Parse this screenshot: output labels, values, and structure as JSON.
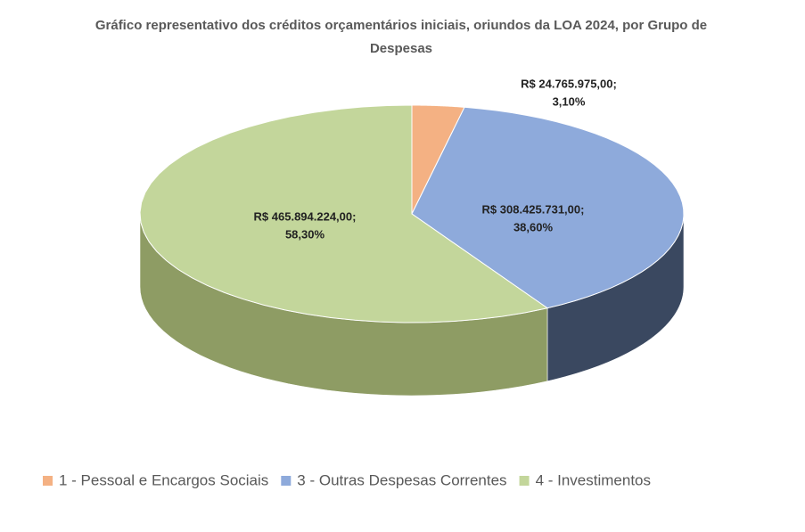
{
  "chart_data": {
    "type": "pie3d",
    "title": "Gráfico  representativo dos créditos orçamentários  iniciais, oriundos  da LOA 2024,  por Grupo de Despesas",
    "categories": [
      "1 - Pessoal e Encargos Sociais",
      "3 - Outras Despesas Correntes",
      "4 - Investimentos"
    ],
    "values": [
      24765975,
      308425731,
      465894224
    ],
    "value_labels": [
      "R$ 24.765.975,00;",
      "R$ 308.425.731,00;",
      "R$ 465.894.224,00;"
    ],
    "percentages": [
      3.1,
      38.6,
      58.3
    ],
    "percentage_labels": [
      "3,10%",
      "38,60%",
      "58,30%"
    ],
    "colors": [
      "#f4b183",
      "#8eaadb",
      "#c3d69b"
    ],
    "side_colors": [
      "#b98060",
      "#3a4860",
      "#8e9c64"
    ],
    "legend": "bottom"
  }
}
